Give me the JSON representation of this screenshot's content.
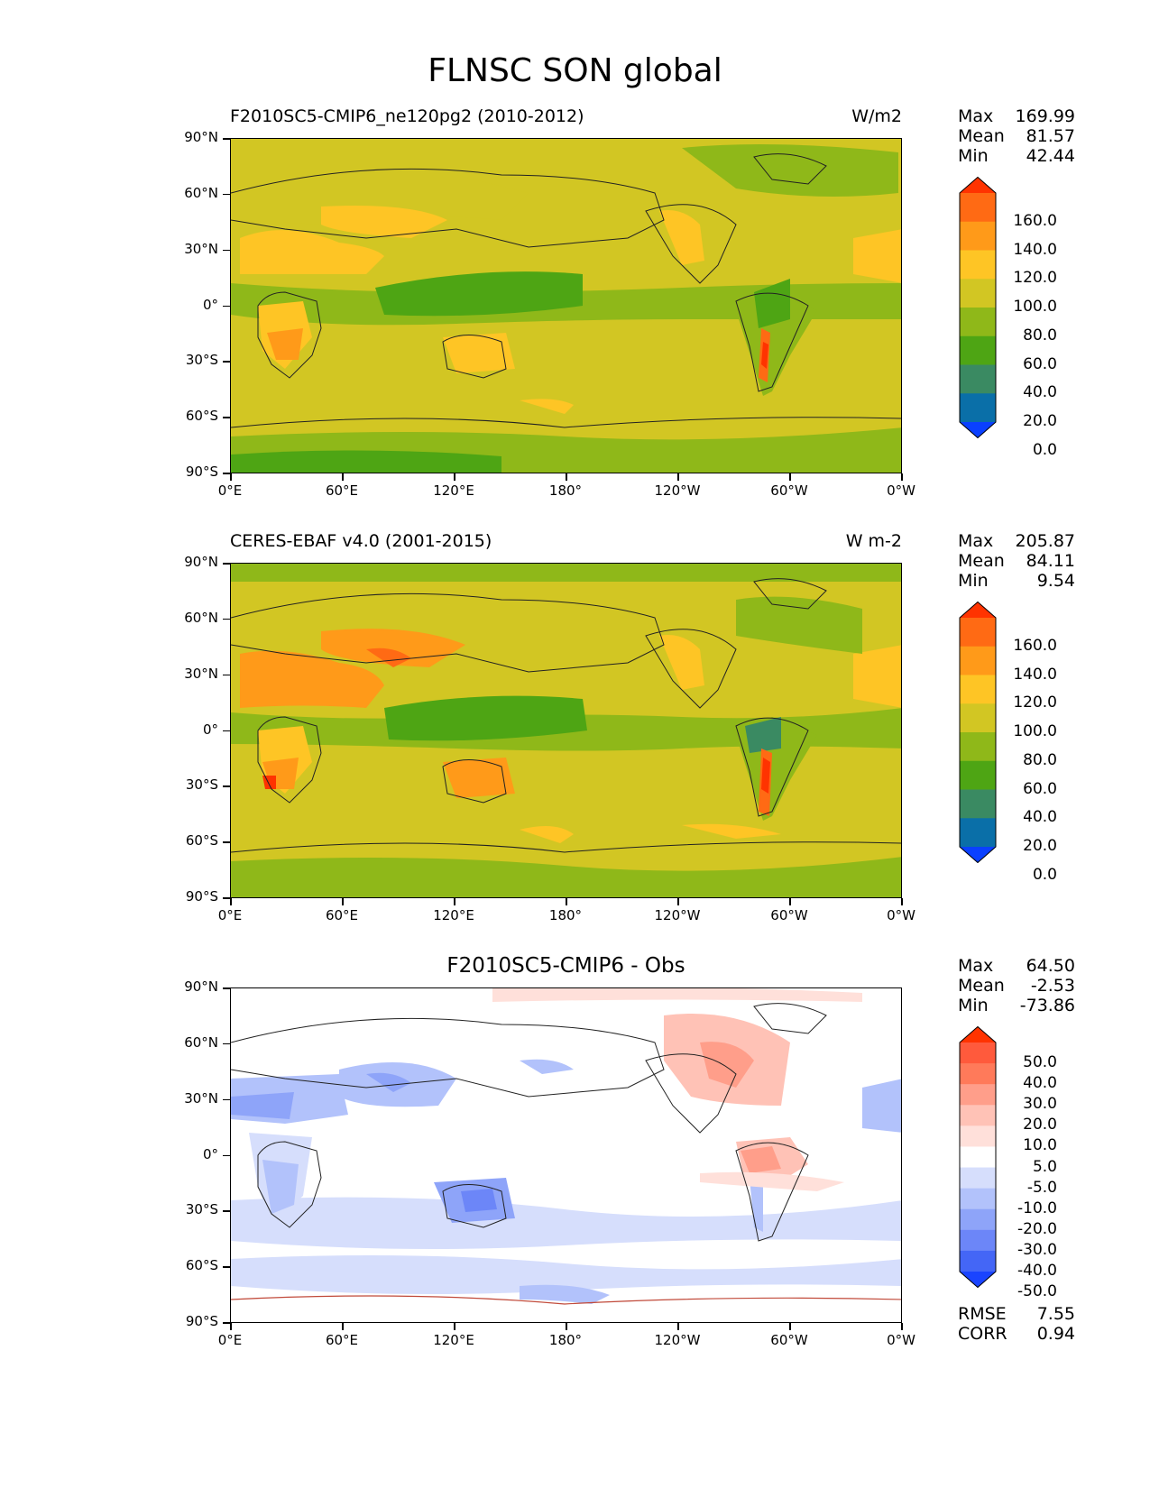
{
  "title": "FLNSC SON global",
  "lat_ticks": [
    "90°N",
    "60°N",
    "30°N",
    "0°",
    "30°S",
    "60°S",
    "90°S"
  ],
  "lon_ticks": [
    "0°E",
    "60°E",
    "120°E",
    "180°",
    "120°W",
    "60°W",
    "0°W"
  ],
  "panels": [
    {
      "title_left": "F2010SC5-CMIP6_ne120pg2 (2010-2012)",
      "title_right": "W/m2",
      "title_center": "",
      "stats": [
        {
          "label": "Max",
          "value": "169.99"
        },
        {
          "label": "Mean",
          "value": "81.57"
        },
        {
          "label": "Min",
          "value": "42.44"
        }
      ],
      "colorbar": {
        "labels": [
          "160.0",
          "140.0",
          "120.0",
          "100.0",
          "80.0",
          "60.0",
          "40.0",
          "20.0",
          "0.0"
        ],
        "colors": [
          "#ff3300",
          "#ff6a14",
          "#ff9a19",
          "#fec525",
          "#d2c623",
          "#8fb819",
          "#4ea514",
          "#3a8a62",
          "#0a6fa8",
          "#0a40ff"
        ]
      },
      "extra_stats": []
    },
    {
      "title_left": "CERES-EBAF v4.0 (2001-2015)",
      "title_right": "W m-2",
      "title_center": "",
      "stats": [
        {
          "label": "Max",
          "value": "205.87"
        },
        {
          "label": "Mean",
          "value": "84.11"
        },
        {
          "label": "Min",
          "value": "9.54"
        }
      ],
      "colorbar": {
        "labels": [
          "160.0",
          "140.0",
          "120.0",
          "100.0",
          "80.0",
          "60.0",
          "40.0",
          "20.0",
          "0.0"
        ],
        "colors": [
          "#ff3300",
          "#ff6a14",
          "#ff9a19",
          "#fec525",
          "#d2c623",
          "#8fb819",
          "#4ea514",
          "#3a8a62",
          "#0a6fa8",
          "#0a40ff"
        ]
      },
      "extra_stats": []
    },
    {
      "title_left": "",
      "title_right": "",
      "title_center": "F2010SC5-CMIP6 - Obs",
      "stats": [
        {
          "label": "Max",
          "value": "64.50"
        },
        {
          "label": "Mean",
          "value": "-2.53"
        },
        {
          "label": "Min",
          "value": "-73.86"
        }
      ],
      "colorbar": {
        "labels": [
          "50.0",
          "40.0",
          "30.0",
          "20.0",
          "10.0",
          "5.0",
          "-5.0",
          "-10.0",
          "-20.0",
          "-30.0",
          "-40.0",
          "-50.0"
        ],
        "colors": [
          "#ff3300",
          "#ff5a3c",
          "#ff7a5a",
          "#ff9e8a",
          "#ffc2b6",
          "#ffe0da",
          "#ffffff",
          "#d6defc",
          "#b2c2fb",
          "#8ea4f9",
          "#6c86f8",
          "#4466f6",
          "#1a44ff"
        ]
      },
      "extra_stats": [
        {
          "label": "RMSE",
          "value": "7.55"
        },
        {
          "label": "CORR",
          "value": "0.94"
        }
      ]
    }
  ]
}
